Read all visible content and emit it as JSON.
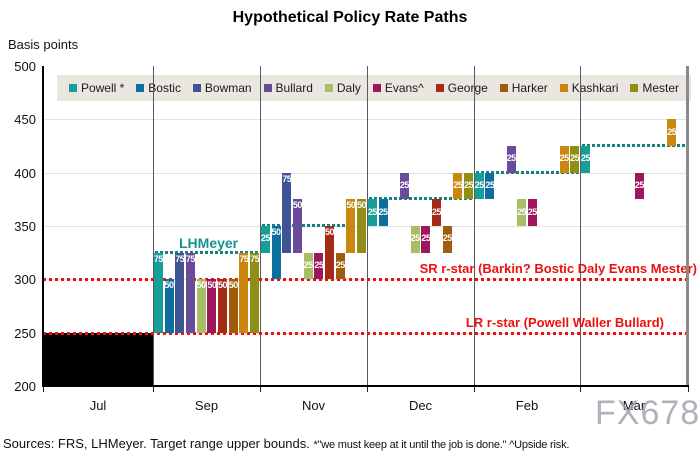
{
  "title": "Hypothetical Policy Rate Paths",
  "y_axis_unit": "Basis points",
  "watermark": "FX678",
  "source_note": {
    "main": "Sources: FRS, LHMeyer. Target range upper bounds.",
    "footnotes": "*\"we must keep at it until the job is done.\" ^Upside risk."
  },
  "chart_data": {
    "type": "bar",
    "title": "Hypothetical Policy Rate Paths",
    "ylabel": "Basis points",
    "ylim": [
      200,
      500
    ],
    "yticks": [
      200,
      250,
      300,
      350,
      400,
      450,
      500
    ],
    "x_sections": [
      "Jul",
      "Sep",
      "Nov",
      "Dec",
      "Feb",
      "Mar"
    ],
    "grid": "vertical-section-lines",
    "legend_position": "top",
    "members": [
      {
        "name": "Powell *",
        "key": "Powell",
        "color": "#169e98"
      },
      {
        "name": "Bostic",
        "key": "Bostic",
        "color": "#0e6f9e"
      },
      {
        "name": "Bowman",
        "key": "Bowman",
        "color": "#3f5494"
      },
      {
        "name": "Bullard",
        "key": "Bullard",
        "color": "#6a4a9a"
      },
      {
        "name": "Daly",
        "key": "Daly",
        "color": "#a7bf62"
      },
      {
        "name": "Evans^",
        "key": "Evans",
        "color": "#9c175e"
      },
      {
        "name": "George",
        "key": "George",
        "color": "#a32c17"
      },
      {
        "name": "Harker",
        "key": "Harker",
        "color": "#9e5c0c"
      },
      {
        "name": "Kashkari",
        "key": "Kashkari",
        "color": "#ca860f"
      },
      {
        "name": "Mester",
        "key": "Mester",
        "color": "#8f8f18"
      }
    ],
    "initial_range": {
      "section": "Jul",
      "from": 200,
      "to": 250,
      "color": "#000000"
    },
    "meetings": [
      {
        "name": "Sep",
        "bars": [
          {
            "member": "Powell",
            "from": 250,
            "to": 325,
            "label": "75"
          },
          {
            "member": "Bostic",
            "from": 250,
            "to": 300,
            "label": "50"
          },
          {
            "member": "Bowman",
            "from": 250,
            "to": 325,
            "label": "75"
          },
          {
            "member": "Bullard",
            "from": 250,
            "to": 325,
            "label": "75"
          },
          {
            "member": "Daly",
            "from": 250,
            "to": 300,
            "label": "50"
          },
          {
            "member": "Evans",
            "from": 250,
            "to": 300,
            "label": "50"
          },
          {
            "member": "George",
            "from": 250,
            "to": 300,
            "label": "50"
          },
          {
            "member": "Harker",
            "from": 250,
            "to": 300,
            "label": "50"
          },
          {
            "member": "Kashkari",
            "from": 250,
            "to": 325,
            "label": "75"
          },
          {
            "member": "Mester",
            "from": 250,
            "to": 325,
            "label": "75"
          }
        ]
      },
      {
        "name": "Nov",
        "bars": [
          {
            "member": "Powell",
            "from": 325,
            "to": 350,
            "label": "25"
          },
          {
            "member": "Bostic",
            "from": 300,
            "to": 350,
            "label": "50"
          },
          {
            "member": "Bowman",
            "from": 325,
            "to": 400,
            "label": "75"
          },
          {
            "member": "Bullard",
            "from": 325,
            "to": 375,
            "label": "50"
          },
          {
            "member": "Daly",
            "from": 300,
            "to": 325,
            "label": "25"
          },
          {
            "member": "Evans",
            "from": 300,
            "to": 325,
            "label": "25"
          },
          {
            "member": "George",
            "from": 300,
            "to": 350,
            "label": "50"
          },
          {
            "member": "Harker",
            "from": 300,
            "to": 325,
            "label": "25"
          },
          {
            "member": "Kashkari",
            "from": 325,
            "to": 375,
            "label": "50"
          },
          {
            "member": "Mester",
            "from": 325,
            "to": 375,
            "label": "50"
          }
        ]
      },
      {
        "name": "Dec",
        "bars": [
          {
            "member": "Powell",
            "from": 350,
            "to": 375,
            "label": "25"
          },
          {
            "member": "Bostic",
            "from": 350,
            "to": 375,
            "label": "25"
          },
          {
            "member": "Bullard",
            "from": 375,
            "to": 400,
            "label": "25"
          },
          {
            "member": "Daly",
            "from": 325,
            "to": 350,
            "label": "25"
          },
          {
            "member": "Evans",
            "from": 325,
            "to": 350,
            "label": "25"
          },
          {
            "member": "George",
            "from": 350,
            "to": 375,
            "label": "25"
          },
          {
            "member": "Harker",
            "from": 325,
            "to": 350,
            "label": "25"
          },
          {
            "member": "Kashkari",
            "from": 375,
            "to": 400,
            "label": "25"
          },
          {
            "member": "Mester",
            "from": 375,
            "to": 400,
            "label": "25"
          }
        ]
      },
      {
        "name": "Feb",
        "bars": [
          {
            "member": "Powell",
            "from": 375,
            "to": 400,
            "label": "25"
          },
          {
            "member": "Bostic",
            "from": 375,
            "to": 400,
            "label": "25"
          },
          {
            "member": "Bullard",
            "from": 400,
            "to": 425,
            "label": "25"
          },
          {
            "member": "Daly",
            "from": 350,
            "to": 375,
            "label": "25"
          },
          {
            "member": "Evans",
            "from": 350,
            "to": 375,
            "label": "25"
          },
          {
            "member": "Kashkari",
            "from": 400,
            "to": 425,
            "label": "25"
          },
          {
            "member": "Mester",
            "from": 400,
            "to": 425,
            "label": "25"
          }
        ]
      },
      {
        "name": "Mar",
        "bars": [
          {
            "member": "Powell",
            "from": 400,
            "to": 425,
            "label": "25"
          },
          {
            "member": "Evans",
            "from": 375,
            "to": 400,
            "label": "25"
          },
          {
            "member": "Kashkari",
            "from": 425,
            "to": 450,
            "label": "25"
          }
        ]
      }
    ],
    "lhmeyer": {
      "label": "LHMeyer",
      "color": "#12837d",
      "levels": {
        "Sep": 325,
        "Nov": 350,
        "Dec": 375,
        "Feb": 400,
        "Mar": 425
      }
    },
    "reference_lines": [
      {
        "id": "sr",
        "level": 300,
        "label": "SR r-star (Barkin? Bostic Daly Evans Mester)",
        "color": "#ee0f0f"
      },
      {
        "id": "lr",
        "level": 250,
        "label": "LR r-star (Powell Waller Bullard)",
        "color": "#ee0f0f"
      }
    ]
  }
}
